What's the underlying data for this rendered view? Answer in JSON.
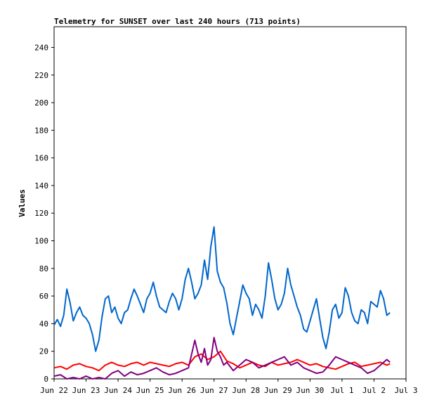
{
  "chart_data": {
    "type": "line",
    "title": "Telemetry for SUNSET over last 240 hours (713 points)",
    "ylabel": "Values",
    "xlabel": "",
    "ylim": [
      0,
      255
    ],
    "y_ticks": [
      0,
      20,
      40,
      60,
      80,
      100,
      120,
      140,
      160,
      180,
      200,
      220,
      240
    ],
    "x_ticks": [
      "Jun 22",
      "Jun 23",
      "Jun 24",
      "Jun 25",
      "Jun 26",
      "Jun 27",
      "Jun 28",
      "Jun 29",
      "Jun 30",
      "Jul 1",
      "Jul 2",
      "Jul 3"
    ],
    "x_domain_days": [
      0,
      11
    ],
    "grid": false,
    "legend": "none",
    "series": [
      {
        "color": "#0066cc",
        "x": [
          0.0,
          0.1,
          0.2,
          0.3,
          0.4,
          0.5,
          0.6,
          0.7,
          0.8,
          0.9,
          1.0,
          1.1,
          1.2,
          1.3,
          1.4,
          1.5,
          1.6,
          1.7,
          1.8,
          1.9,
          2.0,
          2.1,
          2.2,
          2.3,
          2.4,
          2.5,
          2.6,
          2.7,
          2.8,
          2.9,
          3.0,
          3.1,
          3.2,
          3.3,
          3.4,
          3.5,
          3.6,
          3.7,
          3.8,
          3.9,
          4.0,
          4.1,
          4.2,
          4.3,
          4.4,
          4.5,
          4.6,
          4.7,
          4.8,
          4.9,
          5.0,
          5.1,
          5.2,
          5.3,
          5.4,
          5.5,
          5.6,
          5.7,
          5.8,
          5.9,
          6.0,
          6.1,
          6.2,
          6.3,
          6.4,
          6.5,
          6.6,
          6.7,
          6.8,
          6.9,
          7.0,
          7.1,
          7.2,
          7.3,
          7.4,
          7.5,
          7.6,
          7.7,
          7.8,
          7.9,
          8.0,
          8.1,
          8.2,
          8.3,
          8.4,
          8.5,
          8.6,
          8.7,
          8.8,
          8.9,
          9.0,
          9.1,
          9.2,
          9.3,
          9.4,
          9.5,
          9.6,
          9.7,
          9.8,
          9.9,
          10.0,
          10.1,
          10.2,
          10.3,
          10.4,
          10.5
        ],
        "y": [
          39,
          43,
          38,
          46,
          65,
          55,
          42,
          48,
          52,
          46,
          44,
          40,
          32,
          20,
          28,
          45,
          58,
          60,
          48,
          52,
          44,
          40,
          48,
          50,
          58,
          65,
          60,
          54,
          48,
          58,
          62,
          70,
          60,
          52,
          50,
          48,
          56,
          62,
          58,
          50,
          58,
          72,
          80,
          70,
          58,
          62,
          68,
          86,
          72,
          96,
          110,
          78,
          70,
          66,
          55,
          40,
          32,
          44,
          56,
          68,
          62,
          58,
          46,
          54,
          50,
          44,
          60,
          84,
          72,
          58,
          50,
          54,
          62,
          80,
          68,
          60,
          52,
          46,
          36,
          34,
          42,
          50,
          58,
          44,
          30,
          22,
          34,
          50,
          54,
          44,
          48,
          66,
          60,
          48,
          42,
          40,
          50,
          48,
          40,
          56,
          54,
          52,
          64,
          58,
          46,
          48
        ]
      },
      {
        "color": "#ff0000",
        "x": [
          0.0,
          0.2,
          0.4,
          0.6,
          0.8,
          1.0,
          1.2,
          1.4,
          1.6,
          1.8,
          2.0,
          2.2,
          2.4,
          2.6,
          2.8,
          3.0,
          3.2,
          3.4,
          3.6,
          3.8,
          4.0,
          4.2,
          4.4,
          4.6,
          4.8,
          5.0,
          5.2,
          5.4,
          5.6,
          5.8,
          6.0,
          6.2,
          6.4,
          6.6,
          6.8,
          7.0,
          7.2,
          7.4,
          7.6,
          7.8,
          8.0,
          8.2,
          8.4,
          8.6,
          8.8,
          9.0,
          9.2,
          9.4,
          9.6,
          9.8,
          10.0,
          10.2,
          10.4,
          10.5
        ],
        "y": [
          8,
          9,
          7,
          10,
          11,
          9,
          8,
          6,
          10,
          12,
          10,
          9,
          11,
          12,
          10,
          12,
          11,
          10,
          9,
          11,
          12,
          10,
          16,
          18,
          14,
          16,
          20,
          13,
          11,
          8,
          10,
          12,
          10,
          9,
          12,
          10,
          11,
          12,
          14,
          12,
          10,
          11,
          9,
          8,
          7,
          9,
          11,
          12,
          9,
          10,
          11,
          12,
          10,
          11
        ]
      },
      {
        "color": "#800080",
        "x": [
          0.0,
          0.2,
          0.4,
          0.6,
          0.8,
          1.0,
          1.2,
          1.4,
          1.6,
          1.8,
          2.0,
          2.2,
          2.4,
          2.6,
          2.8,
          3.0,
          3.2,
          3.4,
          3.6,
          3.8,
          4.0,
          4.2,
          4.4,
          4.5,
          4.6,
          4.7,
          4.8,
          4.9,
          5.0,
          5.1,
          5.2,
          5.3,
          5.4,
          5.6,
          5.8,
          6.0,
          6.2,
          6.4,
          6.6,
          6.8,
          7.0,
          7.2,
          7.4,
          7.6,
          7.8,
          8.0,
          8.2,
          8.4,
          8.6,
          8.8,
          9.0,
          9.2,
          9.4,
          9.6,
          9.8,
          10.0,
          10.2,
          10.4,
          10.5
        ],
        "y": [
          2,
          3,
          0,
          1,
          0,
          2,
          0,
          1,
          0,
          4,
          6,
          2,
          5,
          3,
          4,
          6,
          8,
          5,
          3,
          4,
          6,
          8,
          28,
          18,
          12,
          22,
          10,
          14,
          30,
          20,
          16,
          10,
          12,
          6,
          10,
          14,
          12,
          8,
          10,
          12,
          14,
          16,
          10,
          12,
          8,
          6,
          4,
          5,
          10,
          16,
          14,
          12,
          10,
          8,
          4,
          6,
          10,
          14,
          12
        ]
      }
    ]
  }
}
